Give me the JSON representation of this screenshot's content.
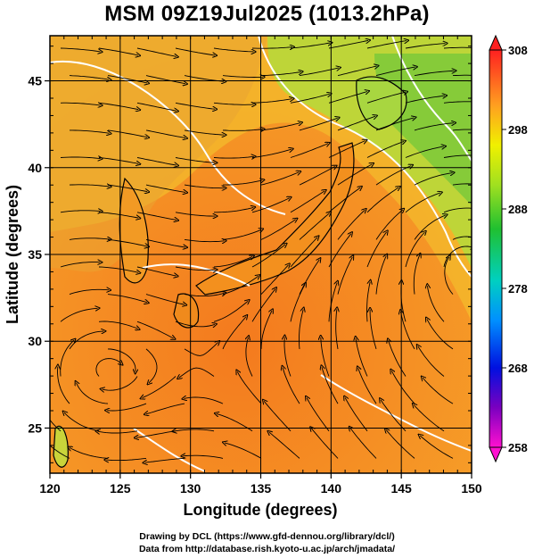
{
  "title": "MSM 09Z19Jul2025 (1013.2hPa)",
  "map": {
    "x_label": "Longitude (degrees)",
    "y_label": "Latitude  (degrees)",
    "lon_range": [
      120,
      150
    ],
    "lat_range": [
      22.4,
      47.6
    ],
    "lon_ticks": [
      "120",
      "125",
      "130",
      "135",
      "140",
      "145",
      "150"
    ],
    "lat_ticks": [
      "25",
      "30",
      "35",
      "40",
      "45"
    ],
    "grid": true,
    "field": "temperature (K) shaded, wind streamlines",
    "contour_color": "#ffffff"
  },
  "colorbar": {
    "ticks": [
      "308",
      "298",
      "288",
      "278",
      "268",
      "258"
    ],
    "min": 258,
    "max": 308,
    "placement": "right"
  },
  "credits": [
    "Drawing by DCL (https://www.gfd-dennou.org/library/dcl/)",
    "Data from http://database.rish.kyoto-u.ac.jp/arch/jmadata/"
  ]
}
